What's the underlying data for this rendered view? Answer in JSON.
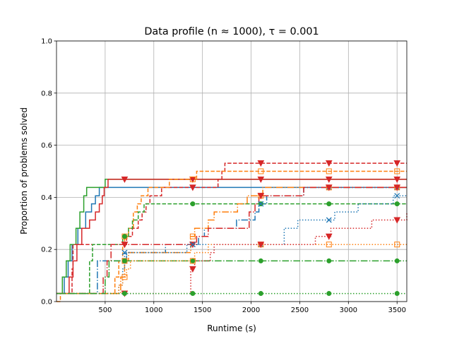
{
  "chart_data": {
    "type": "line",
    "title": "Data profile (n ≈ 1000), τ = 0.001",
    "xlabel": "Runtime (s)",
    "ylabel": "Proportion of problems solved",
    "xlim": [
      0,
      3600
    ],
    "ylim": [
      0,
      1.0
    ],
    "xticks": [
      500,
      1000,
      1500,
      2000,
      2500,
      3000,
      3500
    ],
    "yticks": [
      0.0,
      0.2,
      0.4,
      0.6,
      0.8,
      1.0
    ],
    "xtick_labels": [
      "500",
      "1000",
      "1500",
      "2000",
      "2500",
      "3000",
      "3500"
    ],
    "ytick_labels": [
      "0.0",
      "0.2",
      "0.4",
      "0.6",
      "0.8",
      "1.0"
    ],
    "grid": true,
    "colors": {
      "blue": "#1f77b4",
      "orange": "#ff7f0e",
      "green": "#2ca02c",
      "red": "#d62728",
      "grid": "#b0b0b0"
    },
    "series": [
      {
        "color": "blue",
        "dash": "solid",
        "marker": "none",
        "points": [
          [
            0,
            0.031
          ],
          [
            60,
            0.031
          ],
          [
            80,
            0.094
          ],
          [
            120,
            0.156
          ],
          [
            160,
            0.219
          ],
          [
            220,
            0.281
          ],
          [
            300,
            0.344
          ],
          [
            360,
            0.375
          ],
          [
            400,
            0.406
          ],
          [
            440,
            0.438
          ],
          [
            3600,
            0.438
          ]
        ]
      },
      {
        "color": "green",
        "dash": "solid",
        "marker": "none",
        "points": [
          [
            0,
            0.031
          ],
          [
            40,
            0.031
          ],
          [
            60,
            0.094
          ],
          [
            100,
            0.156
          ],
          [
            140,
            0.219
          ],
          [
            200,
            0.281
          ],
          [
            240,
            0.344
          ],
          [
            280,
            0.406
          ],
          [
            310,
            0.438
          ],
          [
            480,
            0.438
          ],
          [
            500,
            0.469
          ],
          [
            3600,
            0.469
          ]
        ]
      },
      {
        "color": "red",
        "dash": "solid",
        "marker": "triangle",
        "points": [
          [
            0,
            0.031
          ],
          [
            110,
            0.031
          ],
          [
            130,
            0.094
          ],
          [
            170,
            0.156
          ],
          [
            210,
            0.219
          ],
          [
            260,
            0.281
          ],
          [
            340,
            0.313
          ],
          [
            400,
            0.344
          ],
          [
            440,
            0.375
          ],
          [
            470,
            0.406
          ],
          [
            490,
            0.438
          ],
          [
            530,
            0.469
          ],
          [
            3600,
            0.469
          ]
        ]
      },
      {
        "color": "red",
        "dash": "dashed",
        "marker": "triangle",
        "points": [
          [
            0,
            0.031
          ],
          [
            150,
            0.031
          ],
          [
            160,
            0.125
          ],
          [
            170,
            0.219
          ],
          [
            620,
            0.219
          ],
          [
            680,
            0.219
          ],
          [
            720,
            0.25
          ],
          [
            780,
            0.281
          ],
          [
            840,
            0.313
          ],
          [
            880,
            0.344
          ],
          [
            920,
            0.375
          ],
          [
            960,
            0.406
          ],
          [
            1080,
            0.438
          ],
          [
            1620,
            0.438
          ],
          [
            1660,
            0.469
          ],
          [
            1700,
            0.5
          ],
          [
            1730,
            0.531
          ],
          [
            3600,
            0.531
          ]
        ]
      },
      {
        "color": "orange",
        "dash": "dashed",
        "marker": "square",
        "points": [
          [
            0,
            0.0
          ],
          [
            30,
            0.0
          ],
          [
            40,
            0.031
          ],
          [
            560,
            0.031
          ],
          [
            600,
            0.094
          ],
          [
            640,
            0.156
          ],
          [
            680,
            0.219
          ],
          [
            700,
            0.25
          ],
          [
            740,
            0.281
          ],
          [
            790,
            0.344
          ],
          [
            830,
            0.375
          ],
          [
            870,
            0.406
          ],
          [
            940,
            0.438
          ],
          [
            1120,
            0.438
          ],
          [
            1160,
            0.469
          ],
          [
            1420,
            0.469
          ],
          [
            1440,
            0.5
          ],
          [
            3600,
            0.5
          ]
        ]
      },
      {
        "color": "green",
        "dash": "dashed",
        "marker": "circle",
        "points": [
          [
            0,
            0.031
          ],
          [
            320,
            0.031
          ],
          [
            340,
            0.156
          ],
          [
            370,
            0.219
          ],
          [
            640,
            0.219
          ],
          [
            680,
            0.25
          ],
          [
            740,
            0.281
          ],
          [
            780,
            0.313
          ],
          [
            840,
            0.344
          ],
          [
            900,
            0.375
          ],
          [
            3600,
            0.375
          ]
        ]
      },
      {
        "color": "blue",
        "dash": "dashdot",
        "marker": "x",
        "points": [
          [
            0,
            0.031
          ],
          [
            380,
            0.031
          ],
          [
            420,
            0.156
          ],
          [
            700,
            0.156
          ],
          [
            720,
            0.188
          ],
          [
            1100,
            0.188
          ],
          [
            1120,
            0.219
          ],
          [
            1440,
            0.219
          ],
          [
            1460,
            0.25
          ],
          [
            1520,
            0.281
          ],
          [
            1800,
            0.281
          ],
          [
            1850,
            0.313
          ],
          [
            2000,
            0.313
          ],
          [
            2040,
            0.344
          ],
          [
            2080,
            0.375
          ],
          [
            2160,
            0.406
          ],
          [
            2500,
            0.406
          ],
          [
            2540,
            0.438
          ],
          [
            3600,
            0.438
          ]
        ]
      },
      {
        "color": "orange",
        "dash": "dashdot",
        "marker": "square",
        "points": [
          [
            0,
            0.031
          ],
          [
            630,
            0.031
          ],
          [
            660,
            0.094
          ],
          [
            700,
            0.156
          ],
          [
            740,
            0.188
          ],
          [
            1340,
            0.188
          ],
          [
            1380,
            0.25
          ],
          [
            1420,
            0.281
          ],
          [
            1520,
            0.281
          ],
          [
            1560,
            0.313
          ],
          [
            1620,
            0.344
          ],
          [
            1820,
            0.344
          ],
          [
            1860,
            0.375
          ],
          [
            1940,
            0.375
          ],
          [
            1960,
            0.406
          ],
          [
            2100,
            0.406
          ],
          [
            2120,
            0.438
          ],
          [
            3600,
            0.438
          ]
        ]
      },
      {
        "color": "red",
        "dash": "dashdot",
        "marker": "triangle",
        "points": [
          [
            0,
            0.031
          ],
          [
            440,
            0.031
          ],
          [
            480,
            0.094
          ],
          [
            520,
            0.156
          ],
          [
            560,
            0.219
          ],
          [
            1400,
            0.219
          ],
          [
            1440,
            0.25
          ],
          [
            1520,
            0.25
          ],
          [
            1560,
            0.281
          ],
          [
            1940,
            0.281
          ],
          [
            1980,
            0.344
          ],
          [
            2040,
            0.375
          ],
          [
            2080,
            0.406
          ],
          [
            2500,
            0.406
          ],
          [
            2540,
            0.438
          ],
          [
            3600,
            0.438
          ]
        ]
      },
      {
        "color": "green",
        "dash": "dashdot",
        "marker": "circle",
        "points": [
          [
            0,
            0.031
          ],
          [
            460,
            0.031
          ],
          [
            500,
            0.094
          ],
          [
            540,
            0.156
          ],
          [
            3600,
            0.156
          ]
        ]
      },
      {
        "color": "blue",
        "dash": "dotted",
        "marker": "x",
        "points": [
          [
            0,
            0.031
          ],
          [
            600,
            0.031
          ],
          [
            640,
            0.063
          ],
          [
            680,
            0.125
          ],
          [
            700,
            0.188
          ],
          [
            1300,
            0.188
          ],
          [
            1340,
            0.219
          ],
          [
            2300,
            0.219
          ],
          [
            2340,
            0.281
          ],
          [
            2480,
            0.313
          ],
          [
            2800,
            0.313
          ],
          [
            2860,
            0.344
          ],
          [
            3060,
            0.344
          ],
          [
            3100,
            0.375
          ],
          [
            3420,
            0.375
          ],
          [
            3460,
            0.406
          ],
          [
            3600,
            0.406
          ]
        ]
      },
      {
        "color": "orange",
        "dash": "dotted",
        "marker": "square",
        "points": [
          [
            0,
            0.031
          ],
          [
            620,
            0.031
          ],
          [
            640,
            0.063
          ],
          [
            680,
            0.094
          ],
          [
            720,
            0.125
          ],
          [
            760,
            0.156
          ],
          [
            1380,
            0.156
          ],
          [
            1420,
            0.188
          ],
          [
            1520,
            0.188
          ],
          [
            1560,
            0.219
          ],
          [
            3600,
            0.219
          ]
        ]
      },
      {
        "color": "red",
        "dash": "dotted",
        "marker": "triangle",
        "points": [
          [
            0,
            0.031
          ],
          [
            1340,
            0.031
          ],
          [
            1380,
            0.125
          ],
          [
            1420,
            0.156
          ],
          [
            1540,
            0.156
          ],
          [
            1580,
            0.188
          ],
          [
            1620,
            0.219
          ],
          [
            2580,
            0.219
          ],
          [
            2660,
            0.25
          ],
          [
            2780,
            0.25
          ],
          [
            2820,
            0.281
          ],
          [
            3200,
            0.281
          ],
          [
            3240,
            0.313
          ],
          [
            3580,
            0.313
          ],
          [
            3600,
            0.344
          ]
        ]
      },
      {
        "color": "green",
        "dash": "dotted",
        "marker": "circle",
        "points": [
          [
            0,
            0.031
          ],
          [
            3600,
            0.031
          ]
        ]
      }
    ],
    "marker_x": [
      700,
      1400,
      2100,
      2800,
      3500
    ]
  }
}
